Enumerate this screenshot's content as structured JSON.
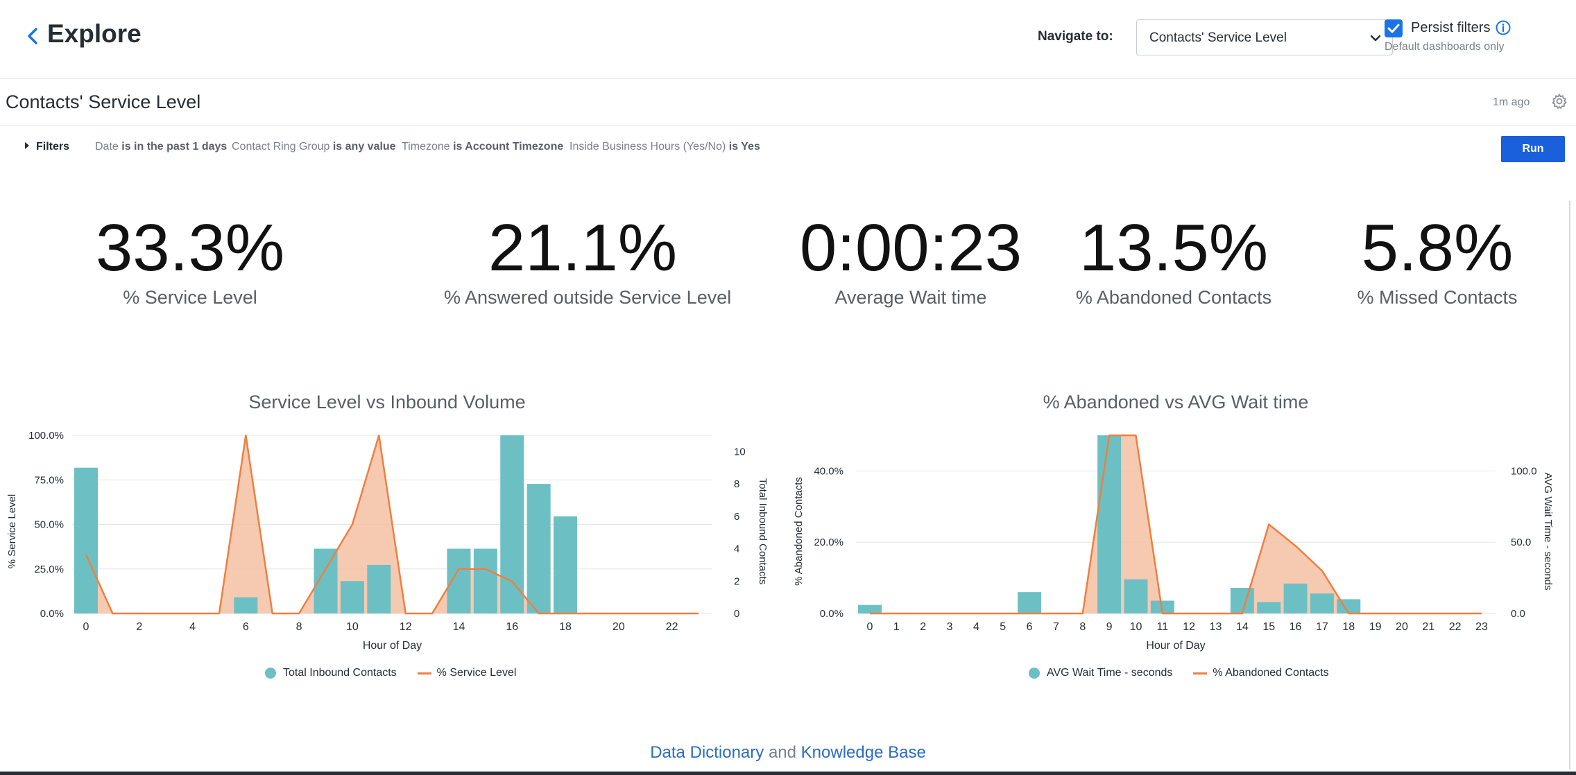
{
  "header": {
    "title": "Explore",
    "navigate_label": "Navigate to:",
    "navigate_value": "Contacts' Service Level",
    "persist_label": "Persist filters",
    "persist_sub": "Default dashboards only",
    "persist_checked": true
  },
  "dashboard": {
    "title": "Contacts' Service Level",
    "updated": "1m ago"
  },
  "filters": {
    "toggle_label": "Filters",
    "chips": [
      {
        "field": "Date",
        "condition": "is in the past 1 days"
      },
      {
        "field": "Contact Ring Group",
        "condition": "is any value"
      },
      {
        "field": "Timezone",
        "condition": "is Account Timezone"
      },
      {
        "field": "Inside Business Hours (Yes/No)",
        "condition": "is Yes"
      }
    ],
    "run_label": "Run"
  },
  "kpis": [
    {
      "value": "33.3%",
      "label": "% Service Level"
    },
    {
      "value": "21.1%",
      "label": "% Answered outside Service Level"
    },
    {
      "value": "0:00:23",
      "label": "Average Wait time"
    },
    {
      "value": "13.5%",
      "label": "% Abandoned Contacts"
    },
    {
      "value": "5.8%",
      "label": "% Missed Contacts"
    }
  ],
  "colors": {
    "bar": "#6cc0c4",
    "line": "#ef7f3f",
    "area": "#f5bfa3",
    "link": "#2a6cc5",
    "run": "#1a5fdb"
  },
  "chart_data": [
    {
      "type": "bar",
      "title": "Service Level vs Inbound Volume",
      "xlabel": "Hour of Day",
      "x_ticks": [
        "0",
        "2",
        "4",
        "6",
        "8",
        "10",
        "12",
        "14",
        "16",
        "18",
        "20",
        "22"
      ],
      "y_left_label": "% Service Level",
      "y_left_ticks": [
        "100.0%",
        "75.0%",
        "50.0%",
        "25.0%",
        "0.0%"
      ],
      "y_right_label": "Total Inbound Contacts",
      "y_right_ticks": [
        "10",
        "8",
        "6",
        "4",
        "2",
        "0"
      ],
      "x_range": [
        0,
        23
      ],
      "ylim_left": [
        0,
        100
      ],
      "ylim_right": [
        0,
        11
      ],
      "series": [
        {
          "name": "Total Inbound Contacts",
          "type": "bar",
          "axis": "right",
          "x": [
            0,
            6,
            9,
            10,
            11,
            14,
            15,
            16,
            17,
            18
          ],
          "values": [
            9,
            1,
            4,
            2,
            3,
            4,
            4,
            11,
            8,
            6
          ]
        },
        {
          "name": "% Service Level",
          "type": "area",
          "axis": "left",
          "x": [
            0,
            1,
            2,
            3,
            4,
            5,
            6,
            7,
            8,
            9,
            10,
            11,
            12,
            13,
            14,
            15,
            16,
            17,
            18,
            19,
            20,
            21,
            22,
            23
          ],
          "values": [
            33,
            0,
            0,
            0,
            0,
            0,
            100,
            0,
            0,
            25,
            50,
            100,
            0,
            0,
            25,
            25,
            18,
            0,
            0,
            0,
            0,
            0,
            0,
            0
          ]
        }
      ],
      "legend": "bottom"
    },
    {
      "type": "bar",
      "title": "% Abandoned vs AVG Wait time",
      "xlabel": "Hour of Day",
      "x_ticks": [
        "0",
        "1",
        "2",
        "3",
        "4",
        "5",
        "6",
        "7",
        "8",
        "9",
        "10",
        "11",
        "12",
        "13",
        "14",
        "15",
        "16",
        "17",
        "18",
        "19",
        "20",
        "21",
        "22",
        "23"
      ],
      "y_left_label": "% Abandoned Contacts",
      "y_left_ticks": [
        "40.0%",
        "20.0%",
        "0.0%"
      ],
      "y_right_label": "AVG Wait Time - seconds",
      "y_right_ticks": [
        "100.0",
        "50.0",
        "0.0"
      ],
      "x_range": [
        0,
        23
      ],
      "ylim_left": [
        0,
        50
      ],
      "ylim_right": [
        0,
        125
      ],
      "series": [
        {
          "name": "AVG Wait Time - seconds",
          "type": "bar",
          "axis": "right",
          "x": [
            0,
            6,
            9,
            10,
            11,
            14,
            15,
            16,
            17,
            18
          ],
          "values": [
            6,
            15,
            125,
            24,
            9,
            18,
            8,
            21,
            14,
            10
          ]
        },
        {
          "name": "% Abandoned Contacts",
          "type": "area",
          "axis": "left",
          "x": [
            0,
            1,
            2,
            3,
            4,
            5,
            6,
            7,
            8,
            9,
            10,
            11,
            12,
            13,
            14,
            15,
            16,
            17,
            18,
            19,
            20,
            21,
            22,
            23
          ],
          "values": [
            0,
            0,
            0,
            0,
            0,
            0,
            0,
            0,
            0,
            50,
            50,
            0,
            0,
            0,
            0,
            25,
            19,
            12,
            0,
            0,
            0,
            0,
            0,
            0
          ]
        }
      ],
      "legend": "bottom"
    }
  ],
  "footer": {
    "link1": "Data Dictionary",
    "and": "and",
    "link2": "Knowledge Base"
  }
}
